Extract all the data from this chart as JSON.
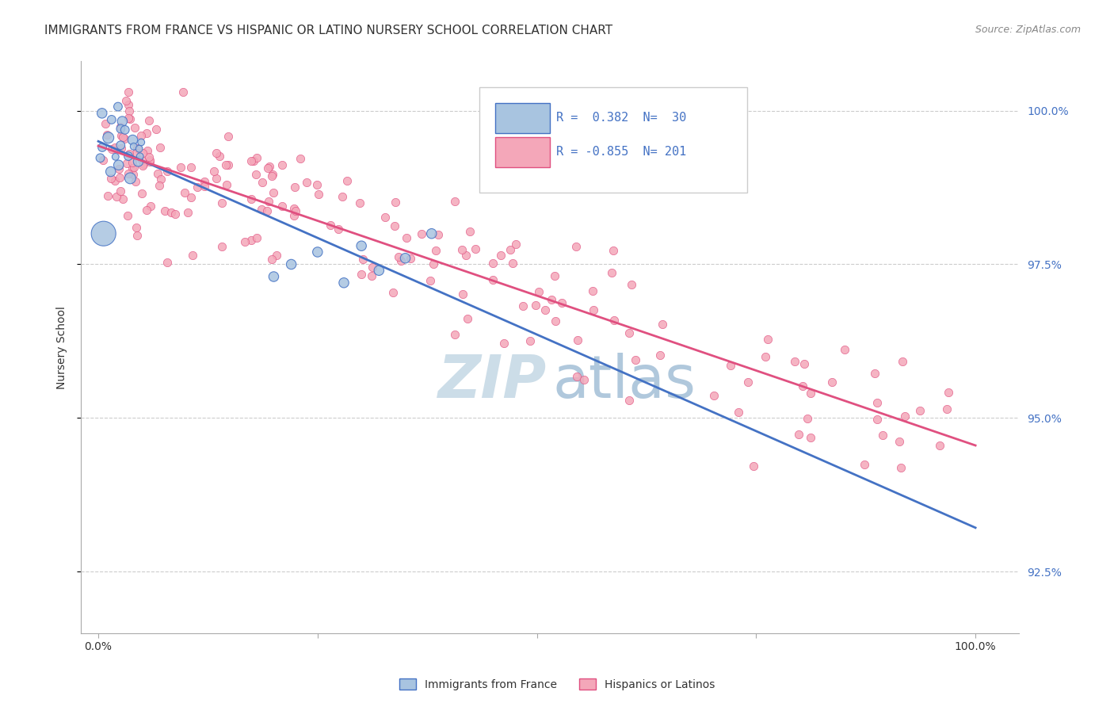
{
  "title": "IMMIGRANTS FROM FRANCE VS HISPANIC OR LATINO NURSERY SCHOOL CORRELATION CHART",
  "source": "Source: ZipAtlas.com",
  "ylabel": "Nursery School",
  "y_ticks": [
    92.5,
    95.0,
    97.5,
    100.0
  ],
  "y_tick_labels": [
    "92.5%",
    "95.0%",
    "97.5%",
    "100.0%"
  ],
  "blue_R": 0.382,
  "blue_N": 30,
  "pink_R": -0.855,
  "pink_N": 201,
  "blue_color": "#a8c4e0",
  "blue_line_color": "#4472c4",
  "pink_color": "#f4a7b9",
  "pink_line_color": "#e05080",
  "watermark_zip_color": "#ccdde8",
  "watermark_atlas_color": "#b0c8dc",
  "background_color": "#ffffff",
  "grid_color": "#cccccc",
  "legend_label_blue": "Immigrants from France",
  "legend_label_pink": "Hispanics or Latinos",
  "ymin": 91.5,
  "ymax": 100.8,
  "xmin": -0.02,
  "xmax": 1.05
}
